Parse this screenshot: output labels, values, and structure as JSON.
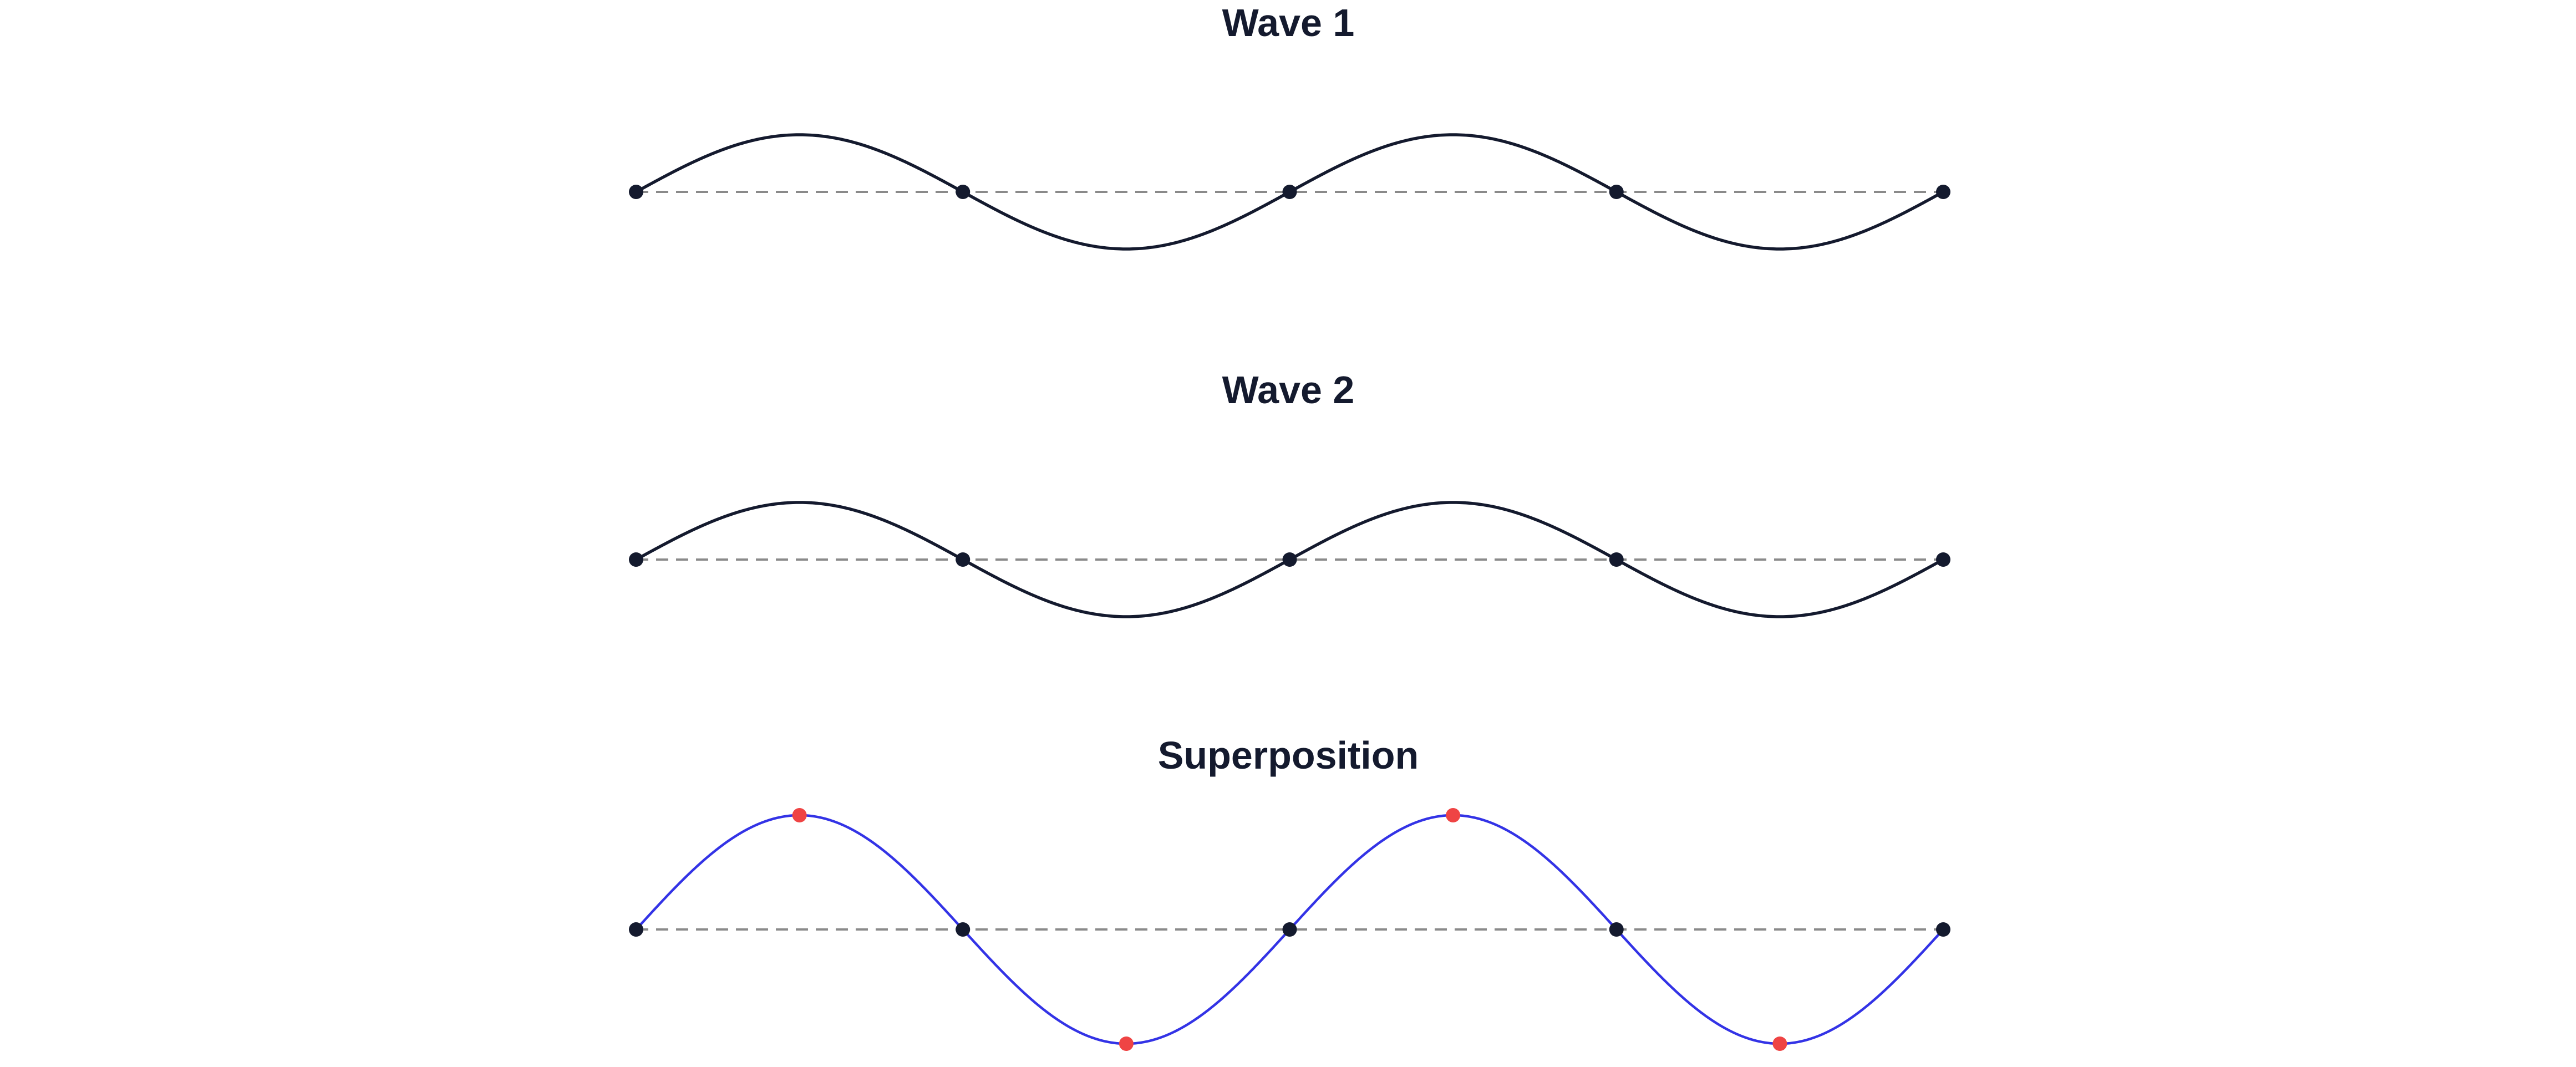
{
  "colors": {
    "title": "#141a2e",
    "node": "#141a2e",
    "wave": "#141a2e",
    "superposition": "#3333e6",
    "antinode": "#ef4444",
    "baseline": "#8a8a8a",
    "background": "#ffffff"
  },
  "panels": [
    {
      "title": "Wave 1",
      "amplitude": 1,
      "cycles": 2,
      "style": "component",
      "nodes": [
        0,
        0.25,
        0.5,
        0.75,
        1
      ],
      "antinodes": []
    },
    {
      "title": "Wave 2",
      "amplitude": 1,
      "cycles": 2,
      "style": "component",
      "nodes": [
        0,
        0.25,
        0.5,
        0.75,
        1
      ],
      "antinodes": []
    },
    {
      "title": "Superposition",
      "amplitude": 2,
      "cycles": 2,
      "style": "sum",
      "nodes": [
        0,
        0.25,
        0.5,
        0.75,
        1
      ],
      "antinodes": [
        0.125,
        0.375,
        0.625,
        0.875
      ]
    }
  ]
}
